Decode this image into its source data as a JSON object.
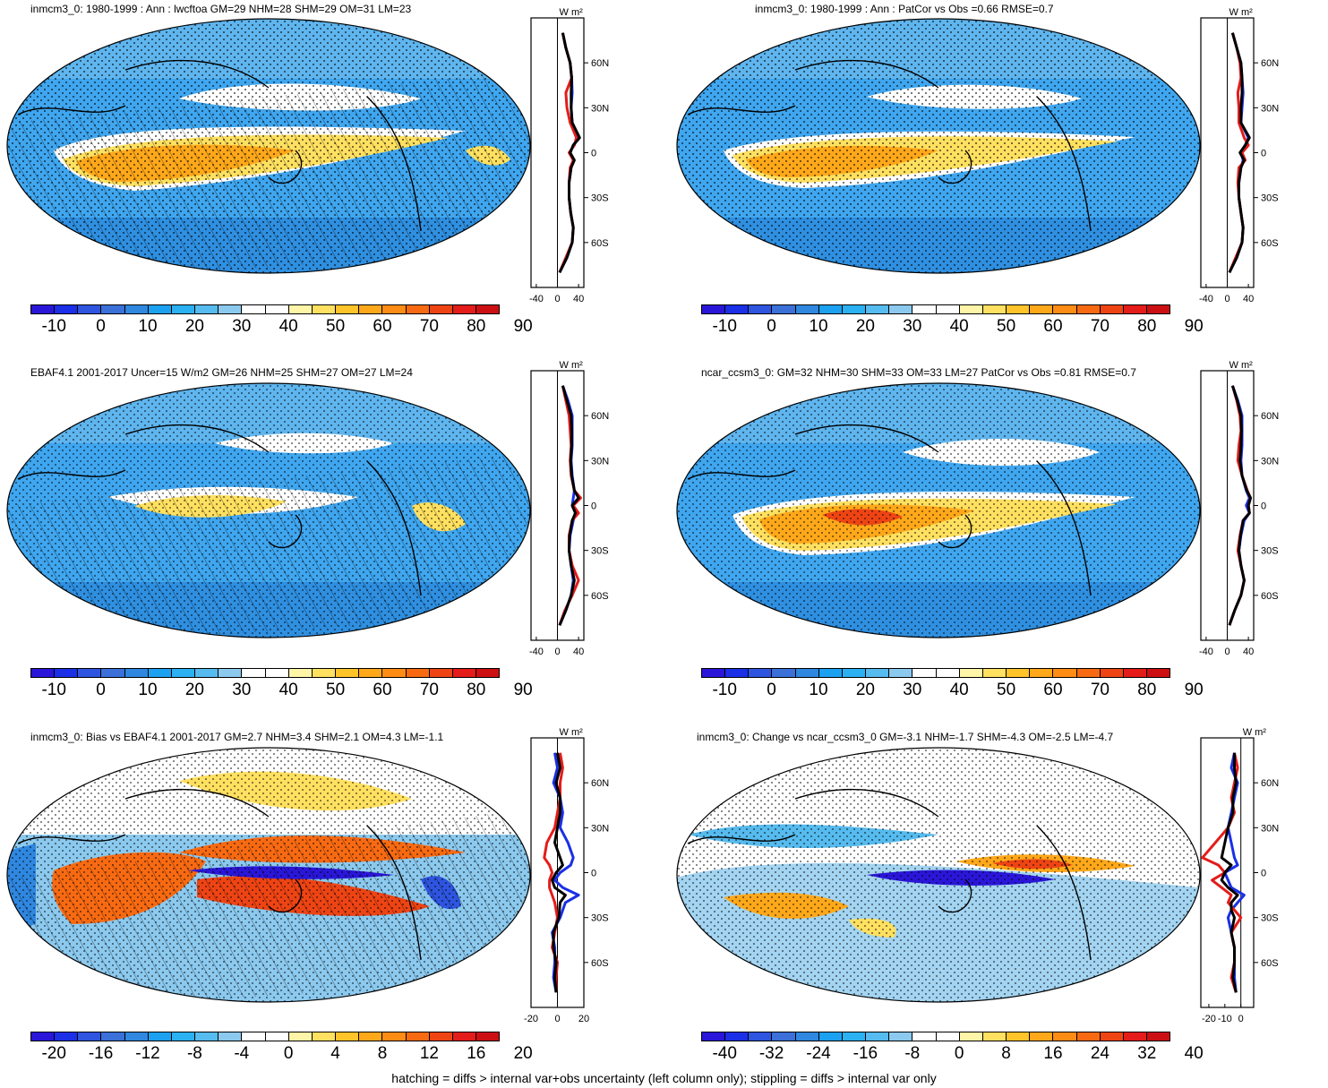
{
  "footer": "hatching = diffs > internal var+obs uncertainty (left column only); stippling = diffs > internal var only",
  "zonal_unit": "W m²",
  "lat_ticks": [
    "60N",
    "30N",
    "0",
    "30S",
    "60S"
  ],
  "lat_values": [
    60,
    30,
    0,
    -30,
    -60
  ],
  "colors": {
    "scale_abs": [
      "#2a16d9",
      "#1a2fe6",
      "#2e55e0",
      "#3a70d8",
      "#2f87e0",
      "#1ca0f0",
      "#2bb0f2",
      "#56bbee",
      "#8cc9ee",
      "#ffffff",
      "#ffffff",
      "#fff5a8",
      "#ffe060",
      "#ffc42a",
      "#ffa81a",
      "#ff8c14",
      "#f86a12",
      "#ee4414",
      "#e41c1a",
      "#cc0f12"
    ],
    "scale_diff": [
      "#2a16d9",
      "#1a2fe6",
      "#2e55e0",
      "#3a70d8",
      "#2f87e0",
      "#1ca0f0",
      "#2bb0f2",
      "#56bbee",
      "#8cc9ee",
      "#ffffff",
      "#ffffff",
      "#fff5a8",
      "#ffe060",
      "#ffc42a",
      "#ffa81a",
      "#ff8c14",
      "#f86a12",
      "#ee4414",
      "#e41c1a",
      "#cc0f12"
    ],
    "model": "#e41c1a",
    "obs": "#1a2fe6",
    "ref": "#000000"
  },
  "panels": [
    {
      "id": "p1",
      "title": "inmcm3_0: 1980-1999 : Ann : lwcftoa GM=29 NHM=28 SHM=29 OM=31 LM=23",
      "cbar_labels": [
        "-10",
        "0",
        "10",
        "20",
        "30",
        "40",
        "50",
        "60",
        "70",
        "80",
        "90"
      ],
      "zonal_xticks": [
        "-40",
        "0",
        "40"
      ],
      "chart_data": {
        "type": "line",
        "xlim": [
          -50,
          50
        ],
        "ylim": [
          -90,
          90
        ],
        "lat": [
          80,
          70,
          60,
          50,
          40,
          30,
          20,
          10,
          5,
          0,
          -5,
          -10,
          -20,
          -30,
          -40,
          -50,
          -60,
          -70,
          -80
        ],
        "series": [
          {
            "color": "#1a2fe6",
            "values": [
              10,
              16,
              24,
              27,
              28,
              26,
              28,
              40,
              30,
              24,
              30,
              26,
              22,
              22,
              25,
              30,
              28,
              18,
              4
            ]
          },
          {
            "color": "#e41c1a",
            "values": [
              10,
              16,
              24,
              27,
              16,
              18,
              24,
              36,
              32,
              22,
              30,
              24,
              22,
              22,
              25,
              30,
              28,
              16,
              4
            ]
          },
          {
            "color": "#000000",
            "values": [
              10,
              16,
              24,
              27,
              26,
              26,
              28,
              42,
              30,
              24,
              32,
              26,
              22,
              22,
              25,
              30,
              28,
              18,
              4
            ]
          }
        ]
      }
    },
    {
      "id": "p2",
      "title": "inmcm3_0: 1980-1999 : Ann : PatCor vs Obs =0.66 RMSE=0.7",
      "cbar_labels": [
        "-10",
        "0",
        "10",
        "20",
        "30",
        "40",
        "50",
        "60",
        "70",
        "80",
        "90"
      ],
      "zonal_xticks": [
        "-40",
        "0",
        "40"
      ],
      "chart_data": {
        "type": "line",
        "xlim": [
          -50,
          50
        ],
        "ylim": [
          -90,
          90
        ],
        "lat": [
          80,
          70,
          60,
          50,
          40,
          30,
          20,
          10,
          5,
          0,
          -5,
          -10,
          -20,
          -30,
          -40,
          -50,
          -60,
          -70,
          -80
        ],
        "series": [
          {
            "color": "#1a2fe6",
            "values": [
              10,
              18,
              26,
              28,
              30,
              28,
              26,
              40,
              34,
              26,
              30,
              26,
              22,
              22,
              26,
              30,
              28,
              18,
              4
            ]
          },
          {
            "color": "#e41c1a",
            "values": [
              10,
              18,
              24,
              26,
              20,
              22,
              22,
              32,
              40,
              28,
              34,
              22,
              20,
              22,
              26,
              30,
              28,
              16,
              4
            ]
          },
          {
            "color": "#000000",
            "values": [
              10,
              18,
              26,
              28,
              28,
              26,
              26,
              42,
              34,
              24,
              32,
              26,
              22,
              22,
              26,
              30,
              28,
              18,
              4
            ]
          }
        ]
      }
    },
    {
      "id": "p3",
      "title": "EBAF4.1 2001-2017 Uncer=15 W/m2 GM=26 NHM=25 SHM=27 OM=27 LM=24",
      "cbar_labels": [
        "-10",
        "0",
        "10",
        "20",
        "30",
        "40",
        "50",
        "60",
        "70",
        "80",
        "90"
      ],
      "zonal_xticks": [
        "-40",
        "0",
        "40"
      ],
      "chart_data": {
        "type": "line",
        "xlim": [
          -50,
          50
        ],
        "ylim": [
          -90,
          90
        ],
        "lat": [
          80,
          70,
          60,
          50,
          40,
          30,
          20,
          10,
          5,
          0,
          -5,
          -10,
          -20,
          -30,
          -40,
          -50,
          -60,
          -70,
          -80
        ],
        "series": [
          {
            "color": "#1a2fe6",
            "values": [
              10,
              20,
              28,
              28,
              28,
              26,
              28,
              32,
              30,
              28,
              34,
              30,
              24,
              22,
              26,
              30,
              26,
              16,
              4
            ]
          },
          {
            "color": "#e41c1a",
            "values": [
              10,
              16,
              22,
              24,
              26,
              24,
              26,
              32,
              44,
              30,
              40,
              28,
              22,
              22,
              28,
              40,
              28,
              14,
              4
            ]
          },
          {
            "color": "#000000",
            "values": [
              10,
              18,
              26,
              27,
              27,
              25,
              27,
              32,
              40,
              28,
              34,
              28,
              23,
              22,
              26,
              32,
              26,
              16,
              4
            ]
          }
        ]
      }
    },
    {
      "id": "p4",
      "title": "ncar_ccsm3_0: GM=32 NHM=30 SHM=33 OM=33 LM=27 PatCor vs Obs =0.81 RMSE=0.7",
      "cbar_labels": [
        "-10",
        "0",
        "10",
        "20",
        "30",
        "40",
        "50",
        "60",
        "70",
        "80",
        "90"
      ],
      "zonal_xticks": [
        "-40",
        "0",
        "40"
      ],
      "chart_data": {
        "type": "line",
        "xlim": [
          -50,
          50
        ],
        "ylim": [
          -90,
          90
        ],
        "lat": [
          80,
          70,
          60,
          50,
          40,
          30,
          20,
          10,
          5,
          0,
          -5,
          -10,
          -20,
          -30,
          -40,
          -50,
          -60,
          -70,
          -80
        ],
        "series": [
          {
            "color": "#1a2fe6",
            "values": [
              10,
              20,
              28,
              28,
              28,
              26,
              28,
              36,
              42,
              36,
              42,
              32,
              26,
              22,
              26,
              32,
              26,
              14,
              4
            ]
          },
          {
            "color": "#e41c1a",
            "values": [
              10,
              18,
              24,
              26,
              22,
              20,
              28,
              38,
              44,
              40,
              42,
              30,
              24,
              20,
              26,
              32,
              26,
              14,
              4
            ]
          },
          {
            "color": "#000000",
            "values": [
              10,
              19,
              26,
              27,
              26,
              24,
              28,
              37,
              44,
              40,
              42,
              30,
              25,
              22,
              26,
              32,
              26,
              14,
              4
            ]
          }
        ]
      }
    },
    {
      "id": "p5",
      "title": "inmcm3_0: Bias vs EBAF4.1 2001-2017 GM=2.7 NHM=3.4 SHM=2.1 OM=4.3 LM=-1.1",
      "cbar_labels": [
        "-20",
        "-16",
        "-12",
        "-8",
        "-4",
        "0",
        "4",
        "8",
        "12",
        "16",
        "20"
      ],
      "zonal_xticks": [
        "-20",
        "0",
        "20"
      ],
      "chart_data": {
        "type": "line",
        "xlim": [
          -20,
          20
        ],
        "ylim": [
          -90,
          90
        ],
        "lat": [
          80,
          70,
          60,
          50,
          40,
          30,
          20,
          10,
          5,
          0,
          -5,
          -10,
          -15,
          -20,
          -30,
          -40,
          -50,
          -60,
          -70,
          -80
        ],
        "series": [
          {
            "color": "#1a2fe6",
            "values": [
              -2,
              0,
              -3,
              2,
              4,
              2,
              8,
              12,
              10,
              2,
              -2,
              4,
              16,
              6,
              2,
              -4,
              -2,
              -2,
              -3,
              -1
            ]
          },
          {
            "color": "#e41c1a",
            "values": [
              2,
              4,
              2,
              2,
              0,
              -2,
              -8,
              -10,
              -6,
              -4,
              -6,
              -6,
              -4,
              -2,
              0,
              -2,
              -4,
              0,
              -1,
              -1
            ]
          },
          {
            "color": "#000000",
            "values": [
              0,
              2,
              -1,
              2,
              2,
              0,
              -2,
              2,
              4,
              -1,
              -4,
              -2,
              6,
              2,
              1,
              -3,
              -3,
              -1,
              -2,
              -1
            ]
          }
        ]
      }
    },
    {
      "id": "p6",
      "title": "inmcm3_0: Change vs ncar_ccsm3_0 GM=-3.1 NHM=-1.7 SHM=-4.3 OM=-2.5 LM=-4.7",
      "cbar_labels": [
        "-40",
        "-32",
        "-24",
        "-16",
        "-8",
        "0",
        "8",
        "16",
        "24",
        "32",
        "40"
      ],
      "zonal_xticks": [
        "-20",
        "-10",
        "0"
      ],
      "chart_data": {
        "type": "line",
        "xlim": [
          -25,
          8
        ],
        "ylim": [
          -90,
          90
        ],
        "lat": [
          80,
          70,
          60,
          50,
          40,
          30,
          20,
          10,
          5,
          0,
          -5,
          -10,
          -15,
          -20,
          -25,
          -30,
          -40,
          -50,
          -60,
          -70,
          -80
        ],
        "series": [
          {
            "color": "#1a2fe6",
            "values": [
              -4,
              -6,
              -2,
              -4,
              -6,
              -8,
              -6,
              -4,
              -2,
              -10,
              -8,
              -6,
              2,
              -2,
              -6,
              -8,
              -6,
              -4,
              -4,
              -4,
              -3
            ]
          },
          {
            "color": "#e41c1a",
            "values": [
              -4,
              -2,
              -4,
              -6,
              -4,
              -8,
              -16,
              -24,
              -14,
              -10,
              -18,
              -12,
              -6,
              -8,
              -4,
              0,
              -6,
              -4,
              -4,
              -6,
              -3
            ]
          },
          {
            "color": "#000000",
            "values": [
              -4,
              -4,
              -3,
              -5,
              -5,
              -8,
              -10,
              -12,
              -6,
              -10,
              -12,
              -8,
              -2,
              -6,
              -6,
              -4,
              -6,
              -4,
              -4,
              -5,
              -3
            ]
          }
        ]
      }
    }
  ]
}
